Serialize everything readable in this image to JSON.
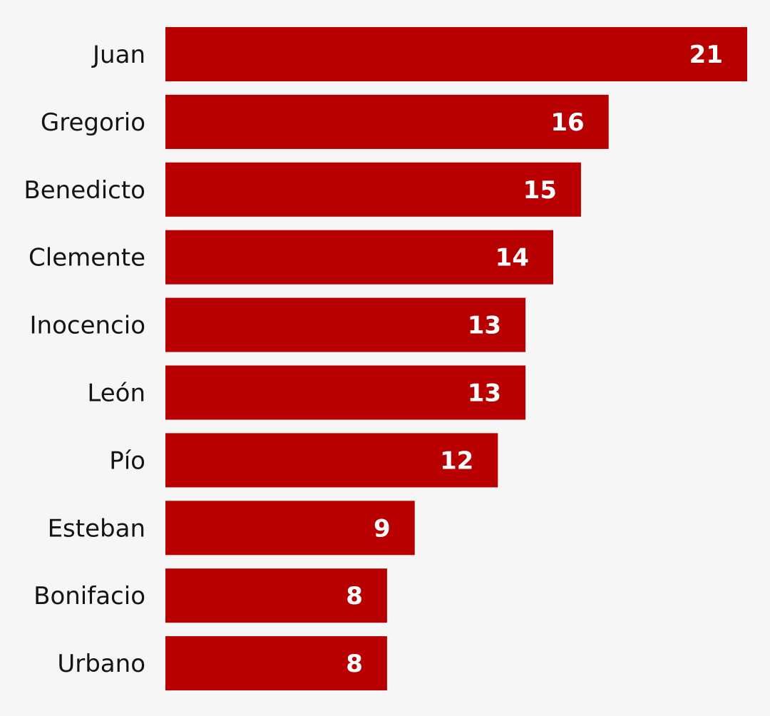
{
  "colors": {
    "background": "#f6f6f6",
    "bar": "#b80000",
    "category_text": "#141414",
    "value_text": "#ffffff"
  },
  "chart_data": {
    "type": "bar",
    "orientation": "horizontal",
    "categories": [
      "Juan",
      "Gregorio",
      "Benedicto",
      "Clemente",
      "Inocencio",
      "León",
      "Pío",
      "Esteban",
      "Bonifacio",
      "Urbano"
    ],
    "values": [
      21,
      16,
      15,
      14,
      13,
      13,
      12,
      9,
      8,
      8
    ],
    "title": "",
    "xlabel": "",
    "ylabel": "",
    "xlim": [
      0,
      21
    ],
    "grid": false,
    "legend": "none",
    "data_labels": true
  }
}
